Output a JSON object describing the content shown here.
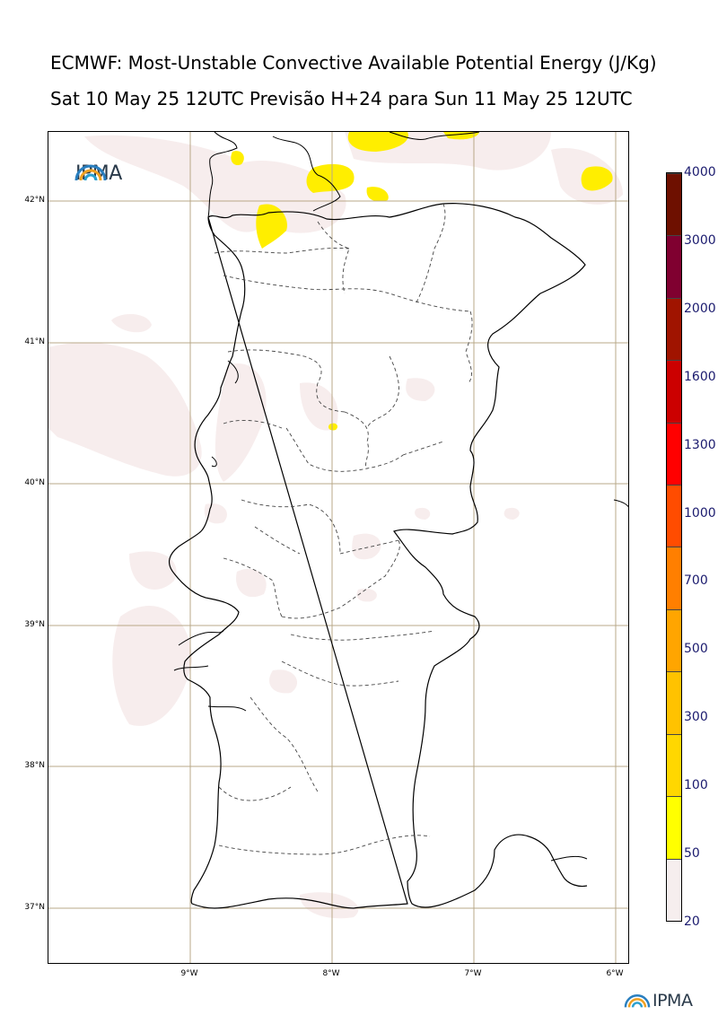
{
  "title_line1": "ECMWF: Most-Unstable Convective Available Potential Energy (J/Kg)",
  "title_line2": "Sat 10 May 25 12UTC Previsão H+24 para Sun 11 May 25 12UTC",
  "logo_text": "IPMA",
  "lat_labels": [
    "42°N",
    "41°N",
    "40°N",
    "39°N",
    "38°N",
    "37°N"
  ],
  "lon_labels": [
    "9°W",
    "8°W",
    "7°W",
    "6°W"
  ],
  "colorbar": {
    "levels": [
      "20",
      "50",
      "100",
      "300",
      "500",
      "700",
      "1000",
      "1300",
      "1600",
      "2000",
      "3000",
      "4000"
    ],
    "colors": [
      "#f6eeee",
      "#ffff00",
      "#ffd700",
      "#ffc200",
      "#ffa500",
      "#ff7f00",
      "#ff4c00",
      "#ff0000",
      "#cc0000",
      "#a01400",
      "#800030",
      "#6e1000"
    ]
  },
  "colors": {
    "low_cape": "#f7eded",
    "yellow": "#ffee00",
    "grid": "#b8a888"
  }
}
